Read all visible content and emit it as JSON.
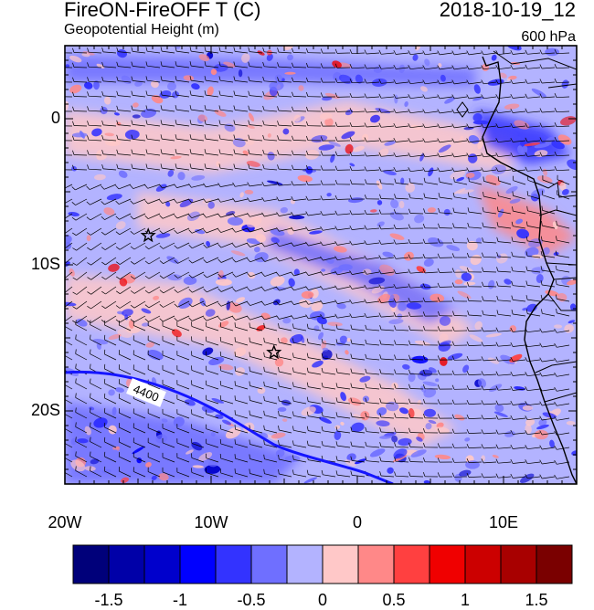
{
  "title": "FireON-FireOFF T (C)",
  "datetime": "2018-10-19_12",
  "subtitle": "Geopotential Height (m)",
  "level": "600 hPa",
  "lat_labels": [
    "0",
    "10S",
    "20S"
  ],
  "lon_labels": [
    "20W",
    "10W",
    "0",
    "10E"
  ],
  "contour_label": "4400",
  "colorbar": {
    "colors": [
      "#00007a",
      "#0000a8",
      "#0000cc",
      "#0000ff",
      "#3333ff",
      "#6f6fff",
      "#b3b3ff",
      "#ffc8c8",
      "#ff8888",
      "#ff4040",
      "#f00000",
      "#cc0000",
      "#a80000",
      "#7a0000"
    ],
    "labels": [
      "-1.5",
      "-1",
      "-0.5",
      "0",
      "0.5",
      "1",
      "1.5"
    ]
  },
  "markers": [
    {
      "name": "star-marker-1",
      "lon": -14.3,
      "lat": -8.0
    },
    {
      "name": "star-marker-2",
      "lon": -5.7,
      "lat": -16.0
    }
  ],
  "map_extent": {
    "lon": [
      -20,
      15
    ],
    "lat": [
      -25,
      5
    ]
  }
}
